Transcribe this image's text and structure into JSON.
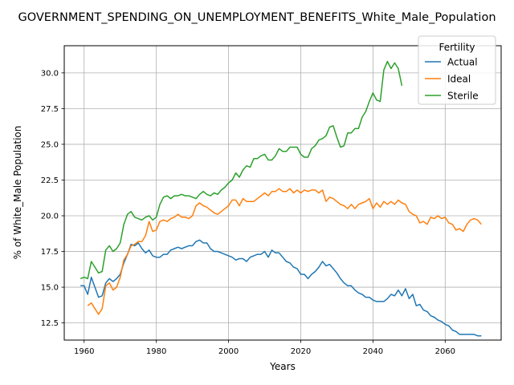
{
  "chart_data": {
    "type": "line",
    "title": "GOVERNMENT_SPENDING_ON_UNEMPLOYMENT_BENEFITS_White_Male_Population",
    "xlabel": "Years",
    "ylabel": "% of White_Male Population",
    "xlim": [
      1954.5,
      2075.5
    ],
    "ylim": [
      11.3,
      31.9
    ],
    "xticks": [
      1960,
      1980,
      2000,
      2020,
      2040,
      2060
    ],
    "yticks": [
      12.5,
      15.0,
      17.5,
      20.0,
      22.5,
      25.0,
      27.5,
      30.0
    ],
    "ytick_labels": [
      "12.5",
      "15.0",
      "17.5",
      "20.0",
      "22.5",
      "25.0",
      "27.5",
      "30.0"
    ],
    "grid": true,
    "legend": {
      "title": "Fertility",
      "placement": "top-right"
    },
    "series": [
      {
        "name": "Actual",
        "color": "#1f77b4",
        "points": [
          [
            1959,
            15.1
          ],
          [
            1960,
            15.1
          ],
          [
            1961,
            14.5
          ],
          [
            1962,
            15.7
          ],
          [
            1963,
            15.0
          ],
          [
            1964,
            14.3
          ],
          [
            1965,
            14.4
          ],
          [
            1966,
            15.3
          ],
          [
            1967,
            15.6
          ],
          [
            1968,
            15.4
          ],
          [
            1969,
            15.6
          ],
          [
            1970,
            15.9
          ],
          [
            1971,
            16.7
          ],
          [
            1972,
            17.3
          ],
          [
            1973,
            18.0
          ],
          [
            1974,
            17.9
          ],
          [
            1975,
            18.1
          ],
          [
            1976,
            17.7
          ],
          [
            1977,
            17.4
          ],
          [
            1978,
            17.6
          ],
          [
            1979,
            17.2
          ],
          [
            1980,
            17.1
          ],
          [
            1981,
            17.1
          ],
          [
            1982,
            17.3
          ],
          [
            1983,
            17.3
          ],
          [
            1984,
            17.6
          ],
          [
            1985,
            17.7
          ],
          [
            1986,
            17.8
          ],
          [
            1987,
            17.7
          ],
          [
            1988,
            17.8
          ],
          [
            1989,
            17.9
          ],
          [
            1990,
            17.9
          ],
          [
            1991,
            18.2
          ],
          [
            1992,
            18.3
          ],
          [
            1993,
            18.1
          ],
          [
            1994,
            18.1
          ],
          [
            1995,
            17.7
          ],
          [
            1996,
            17.5
          ],
          [
            1997,
            17.5
          ],
          [
            1998,
            17.4
          ],
          [
            1999,
            17.3
          ],
          [
            2000,
            17.2
          ],
          [
            2001,
            17.1
          ],
          [
            2002,
            16.9
          ],
          [
            2003,
            17.0
          ],
          [
            2004,
            17.0
          ],
          [
            2005,
            16.8
          ],
          [
            2006,
            17.1
          ],
          [
            2007,
            17.2
          ],
          [
            2008,
            17.3
          ],
          [
            2009,
            17.3
          ],
          [
            2010,
            17.5
          ],
          [
            2011,
            17.1
          ],
          [
            2012,
            17.6
          ],
          [
            2013,
            17.4
          ],
          [
            2014,
            17.4
          ],
          [
            2015,
            17.1
          ],
          [
            2016,
            16.8
          ],
          [
            2017,
            16.7
          ],
          [
            2018,
            16.4
          ],
          [
            2019,
            16.3
          ],
          [
            2020,
            15.9
          ],
          [
            2021,
            15.9
          ],
          [
            2022,
            15.6
          ],
          [
            2023,
            15.9
          ],
          [
            2024,
            16.1
          ],
          [
            2025,
            16.4
          ],
          [
            2026,
            16.8
          ],
          [
            2027,
            16.5
          ],
          [
            2028,
            16.6
          ],
          [
            2029,
            16.3
          ],
          [
            2030,
            16.0
          ],
          [
            2031,
            15.6
          ],
          [
            2032,
            15.3
          ],
          [
            2033,
            15.1
          ],
          [
            2034,
            15.1
          ],
          [
            2035,
            14.8
          ],
          [
            2036,
            14.6
          ],
          [
            2037,
            14.5
          ],
          [
            2038,
            14.3
          ],
          [
            2039,
            14.3
          ],
          [
            2040,
            14.1
          ],
          [
            2041,
            14.0
          ],
          [
            2042,
            14.0
          ],
          [
            2043,
            14.0
          ],
          [
            2044,
            14.2
          ],
          [
            2045,
            14.5
          ],
          [
            2046,
            14.4
          ],
          [
            2047,
            14.8
          ],
          [
            2048,
            14.4
          ],
          [
            2049,
            14.9
          ],
          [
            2050,
            14.2
          ],
          [
            2051,
            14.5
          ],
          [
            2052,
            13.7
          ],
          [
            2053,
            13.8
          ],
          [
            2054,
            13.4
          ],
          [
            2055,
            13.3
          ],
          [
            2056,
            13.0
          ],
          [
            2057,
            12.9
          ],
          [
            2058,
            12.7
          ],
          [
            2059,
            12.6
          ],
          [
            2060,
            12.4
          ],
          [
            2061,
            12.3
          ],
          [
            2062,
            12.0
          ],
          [
            2063,
            11.9
          ],
          [
            2064,
            11.7
          ],
          [
            2065,
            11.7
          ],
          [
            2066,
            11.7
          ],
          [
            2067,
            11.7
          ],
          [
            2068,
            11.7
          ],
          [
            2069,
            11.6
          ],
          [
            2070,
            11.6
          ]
        ]
      },
      {
        "name": "Ideal",
        "color": "#ff7f0e",
        "points": [
          [
            1961,
            13.7
          ],
          [
            1962,
            13.9
          ],
          [
            1963,
            13.5
          ],
          [
            1964,
            13.1
          ],
          [
            1965,
            13.5
          ],
          [
            1966,
            15.1
          ],
          [
            1967,
            15.3
          ],
          [
            1968,
            14.8
          ],
          [
            1969,
            15.0
          ],
          [
            1970,
            15.7
          ],
          [
            1971,
            16.9
          ],
          [
            1972,
            17.3
          ],
          [
            1973,
            17.9
          ],
          [
            1974,
            18.0
          ],
          [
            1975,
            18.2
          ],
          [
            1976,
            18.2
          ],
          [
            1977,
            18.6
          ],
          [
            1978,
            19.6
          ],
          [
            1979,
            18.9
          ],
          [
            1980,
            19.0
          ],
          [
            1981,
            19.6
          ],
          [
            1982,
            19.7
          ],
          [
            1983,
            19.6
          ],
          [
            1984,
            19.8
          ],
          [
            1985,
            19.9
          ],
          [
            1986,
            20.1
          ],
          [
            1987,
            19.9
          ],
          [
            1988,
            19.9
          ],
          [
            1989,
            19.8
          ],
          [
            1990,
            20.0
          ],
          [
            1991,
            20.7
          ],
          [
            1992,
            20.9
          ],
          [
            1993,
            20.7
          ],
          [
            1994,
            20.6
          ],
          [
            1995,
            20.4
          ],
          [
            1996,
            20.2
          ],
          [
            1997,
            20.1
          ],
          [
            1998,
            20.3
          ],
          [
            1999,
            20.5
          ],
          [
            2000,
            20.7
          ],
          [
            2001,
            21.1
          ],
          [
            2002,
            21.1
          ],
          [
            2003,
            20.7
          ],
          [
            2004,
            21.2
          ],
          [
            2005,
            21.0
          ],
          [
            2006,
            21.0
          ],
          [
            2007,
            21.0
          ],
          [
            2008,
            21.2
          ],
          [
            2009,
            21.4
          ],
          [
            2010,
            21.6
          ],
          [
            2011,
            21.4
          ],
          [
            2012,
            21.7
          ],
          [
            2013,
            21.7
          ],
          [
            2014,
            21.9
          ],
          [
            2015,
            21.7
          ],
          [
            2016,
            21.7
          ],
          [
            2017,
            21.9
          ],
          [
            2018,
            21.6
          ],
          [
            2019,
            21.8
          ],
          [
            2020,
            21.6
          ],
          [
            2021,
            21.8
          ],
          [
            2022,
            21.7
          ],
          [
            2023,
            21.8
          ],
          [
            2024,
            21.8
          ],
          [
            2025,
            21.6
          ],
          [
            2026,
            21.8
          ],
          [
            2027,
            21.0
          ],
          [
            2028,
            21.3
          ],
          [
            2029,
            21.2
          ],
          [
            2030,
            21.0
          ],
          [
            2031,
            20.8
          ],
          [
            2032,
            20.7
          ],
          [
            2033,
            20.5
          ],
          [
            2034,
            20.8
          ],
          [
            2035,
            20.5
          ],
          [
            2036,
            20.8
          ],
          [
            2037,
            20.9
          ],
          [
            2038,
            21.0
          ],
          [
            2039,
            21.2
          ],
          [
            2040,
            20.5
          ],
          [
            2041,
            20.9
          ],
          [
            2042,
            20.6
          ],
          [
            2043,
            21.0
          ],
          [
            2044,
            20.8
          ],
          [
            2045,
            21.0
          ],
          [
            2046,
            20.8
          ],
          [
            2047,
            21.1
          ],
          [
            2048,
            20.9
          ],
          [
            2049,
            20.8
          ],
          [
            2050,
            20.3
          ],
          [
            2051,
            20.1
          ],
          [
            2052,
            20.0
          ],
          [
            2053,
            19.5
          ],
          [
            2054,
            19.6
          ],
          [
            2055,
            19.4
          ],
          [
            2056,
            19.9
          ],
          [
            2057,
            19.8
          ],
          [
            2058,
            20.0
          ],
          [
            2059,
            19.8
          ],
          [
            2060,
            19.9
          ],
          [
            2061,
            19.5
          ],
          [
            2062,
            19.4
          ],
          [
            2063,
            19.0
          ],
          [
            2064,
            19.1
          ],
          [
            2065,
            18.9
          ],
          [
            2066,
            19.4
          ],
          [
            2067,
            19.7
          ],
          [
            2068,
            19.8
          ],
          [
            2069,
            19.7
          ],
          [
            2070,
            19.4
          ]
        ]
      },
      {
        "name": "Sterile",
        "color": "#2ca02c",
        "points": [
          [
            1959,
            15.6
          ],
          [
            1960,
            15.7
          ],
          [
            1961,
            15.6
          ],
          [
            1962,
            16.8
          ],
          [
            1963,
            16.4
          ],
          [
            1964,
            16.0
          ],
          [
            1965,
            16.1
          ],
          [
            1966,
            17.6
          ],
          [
            1967,
            17.9
          ],
          [
            1968,
            17.5
          ],
          [
            1969,
            17.7
          ],
          [
            1970,
            18.1
          ],
          [
            1971,
            19.4
          ],
          [
            1972,
            20.1
          ],
          [
            1973,
            20.3
          ],
          [
            1974,
            19.9
          ],
          [
            1975,
            19.8
          ],
          [
            1976,
            19.7
          ],
          [
            1977,
            19.9
          ],
          [
            1978,
            20.0
          ],
          [
            1979,
            19.7
          ],
          [
            1980,
            19.9
          ],
          [
            1981,
            20.8
          ],
          [
            1982,
            21.3
          ],
          [
            1983,
            21.4
          ],
          [
            1984,
            21.2
          ],
          [
            1985,
            21.4
          ],
          [
            1986,
            21.4
          ],
          [
            1987,
            21.5
          ],
          [
            1988,
            21.4
          ],
          [
            1989,
            21.4
          ],
          [
            1990,
            21.3
          ],
          [
            1991,
            21.2
          ],
          [
            1992,
            21.5
          ],
          [
            1993,
            21.7
          ],
          [
            1994,
            21.5
          ],
          [
            1995,
            21.4
          ],
          [
            1996,
            21.6
          ],
          [
            1997,
            21.5
          ],
          [
            1998,
            21.8
          ],
          [
            1999,
            22.0
          ],
          [
            2000,
            22.3
          ],
          [
            2001,
            22.5
          ],
          [
            2002,
            23.0
          ],
          [
            2003,
            22.7
          ],
          [
            2004,
            23.2
          ],
          [
            2005,
            23.5
          ],
          [
            2006,
            23.4
          ],
          [
            2007,
            24.0
          ],
          [
            2008,
            24.0
          ],
          [
            2009,
            24.2
          ],
          [
            2010,
            24.3
          ],
          [
            2011,
            23.9
          ],
          [
            2012,
            23.9
          ],
          [
            2013,
            24.2
          ],
          [
            2014,
            24.7
          ],
          [
            2015,
            24.5
          ],
          [
            2016,
            24.5
          ],
          [
            2017,
            24.8
          ],
          [
            2018,
            24.8
          ],
          [
            2019,
            24.8
          ],
          [
            2020,
            24.3
          ],
          [
            2021,
            24.1
          ],
          [
            2022,
            24.1
          ],
          [
            2023,
            24.7
          ],
          [
            2024,
            24.9
          ],
          [
            2025,
            25.3
          ],
          [
            2026,
            25.4
          ],
          [
            2027,
            25.6
          ],
          [
            2028,
            26.2
          ],
          [
            2029,
            26.3
          ],
          [
            2030,
            25.5
          ],
          [
            2031,
            24.8
          ],
          [
            2032,
            24.9
          ],
          [
            2033,
            25.8
          ],
          [
            2034,
            25.8
          ],
          [
            2035,
            26.1
          ],
          [
            2036,
            26.1
          ],
          [
            2037,
            26.9
          ],
          [
            2038,
            27.3
          ],
          [
            2039,
            28.0
          ],
          [
            2040,
            28.6
          ],
          [
            2041,
            28.1
          ],
          [
            2042,
            28.0
          ],
          [
            2043,
            30.2
          ],
          [
            2044,
            30.8
          ],
          [
            2045,
            30.3
          ],
          [
            2046,
            30.7
          ],
          [
            2047,
            30.3
          ],
          [
            2048,
            29.1
          ]
        ]
      }
    ]
  }
}
